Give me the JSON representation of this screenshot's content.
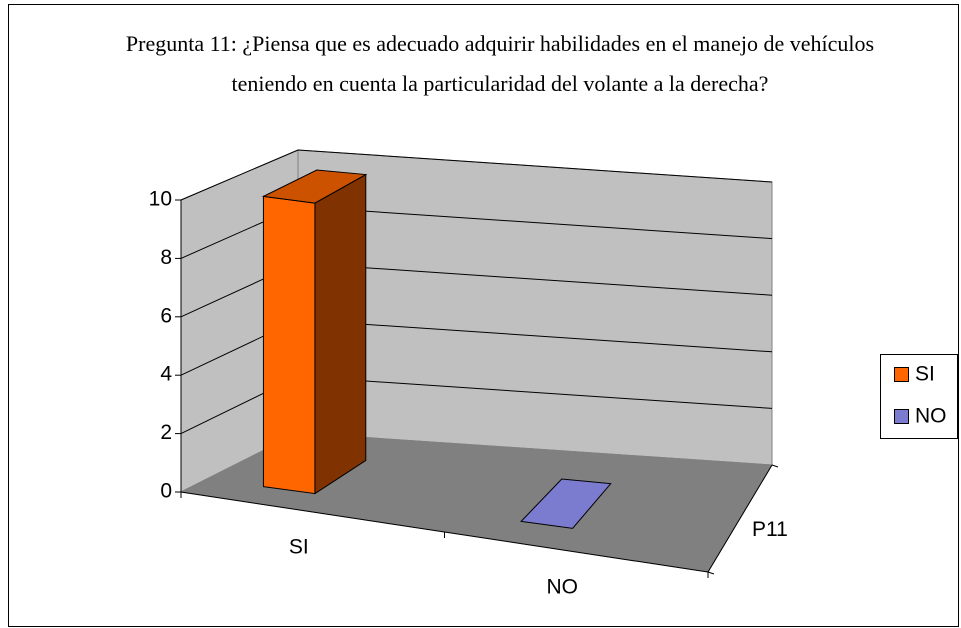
{
  "chart_data": {
    "type": "bar3d",
    "title": "Pregunta 11: ¿Piensa que es adecuado adquirir habilidades en el manejo de vehículos teniendo en cuenta la particularidad del volante a la derecha?",
    "categories": [
      "SI",
      "NO"
    ],
    "series": [
      {
        "name": "P11",
        "values": [
          10,
          0
        ]
      }
    ],
    "colors": [
      "#ff6600",
      "#7b7bd0"
    ],
    "ylim": [
      0,
      10
    ],
    "yticks": [
      0,
      2,
      4,
      6,
      8,
      10
    ],
    "grid": true,
    "legend": "right"
  }
}
